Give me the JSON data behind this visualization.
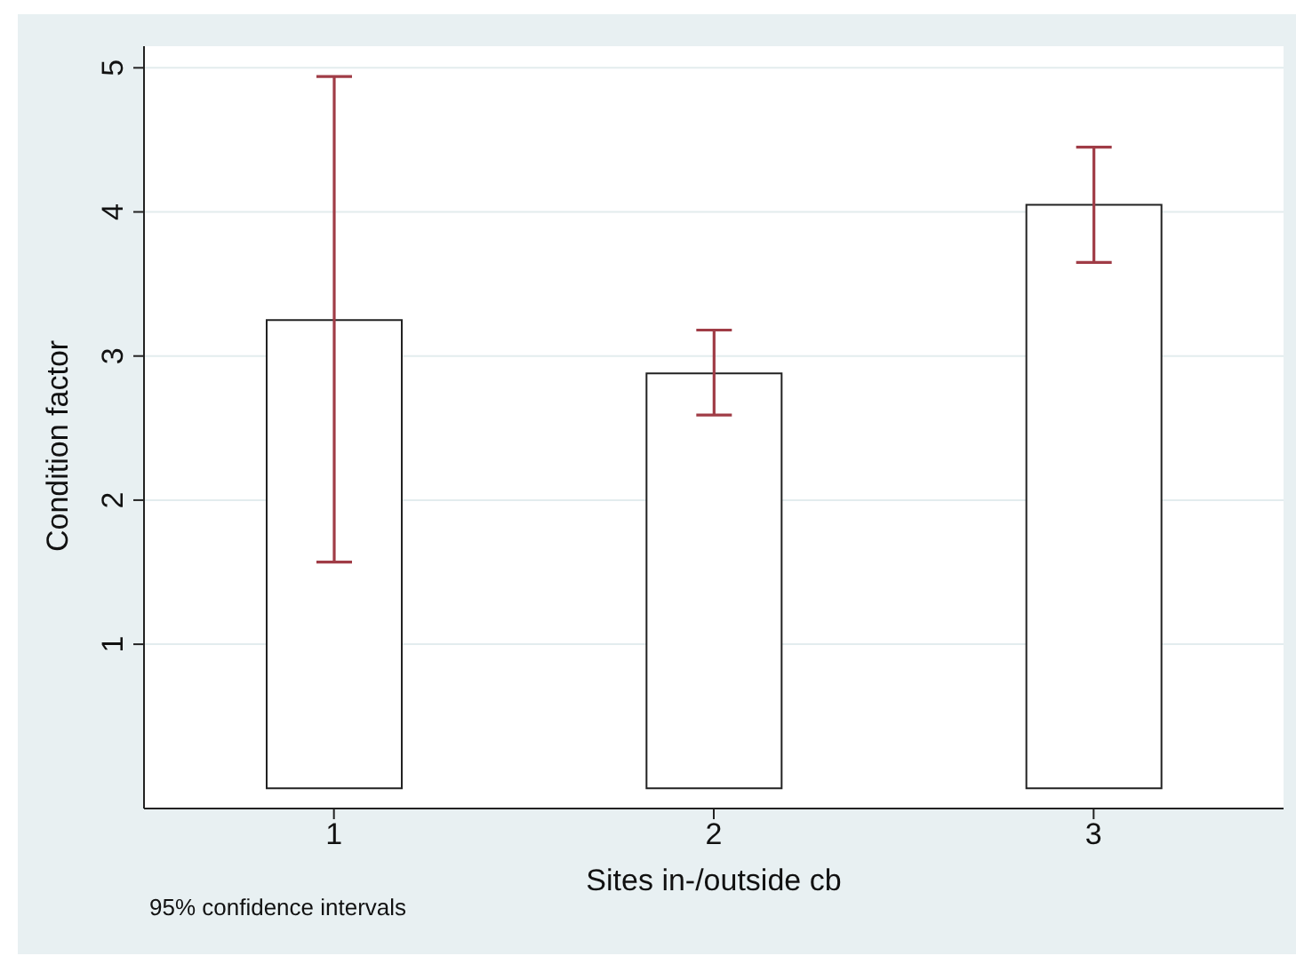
{
  "chart_data": {
    "type": "bar",
    "xlabel": "Sites in-/outside cb",
    "ylabel": "Condition factor",
    "categories": [
      "1",
      "2",
      "3"
    ],
    "values": [
      3.25,
      2.88,
      4.05
    ],
    "errors": [
      [
        1.57,
        4.94
      ],
      [
        2.59,
        3.18
      ],
      [
        3.65,
        4.45
      ]
    ],
    "color": "#ffffff",
    "ylim": [
      -0.14,
      5.15
    ],
    "yticks": [
      1,
      2,
      3,
      4,
      5
    ],
    "grid": "y",
    "annotations": [
      "95% confidence intervals"
    ]
  }
}
